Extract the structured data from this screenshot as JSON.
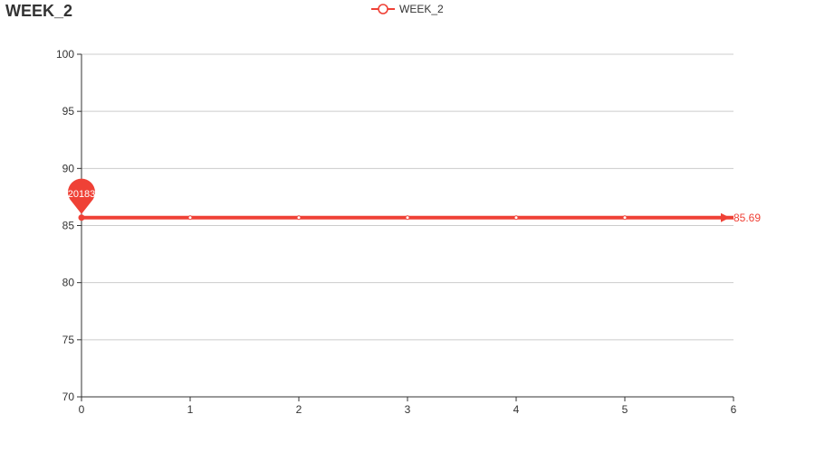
{
  "colors": {
    "series": "#ef4136",
    "grid": "#cccccc",
    "axis": "#333333",
    "text": "#333333"
  },
  "chart_data": {
    "type": "line",
    "title": "WEEK_2",
    "xlabel": "",
    "ylabel": "",
    "x": [
      0,
      1,
      2,
      3,
      4,
      5,
      6
    ],
    "xlim": [
      0,
      6
    ],
    "ylim": [
      70,
      100
    ],
    "yticks": [
      70,
      75,
      80,
      85,
      90,
      95,
      100
    ],
    "grid": true,
    "legend_position": "top-center",
    "series": [
      {
        "name": "WEEK_2",
        "values": [
          85.69,
          85.69,
          85.69,
          85.69,
          85.69,
          85.69,
          85.69
        ]
      }
    ],
    "annotations": {
      "pin_label": "20183",
      "pin_x": 0,
      "end_label": "85.69"
    }
  }
}
